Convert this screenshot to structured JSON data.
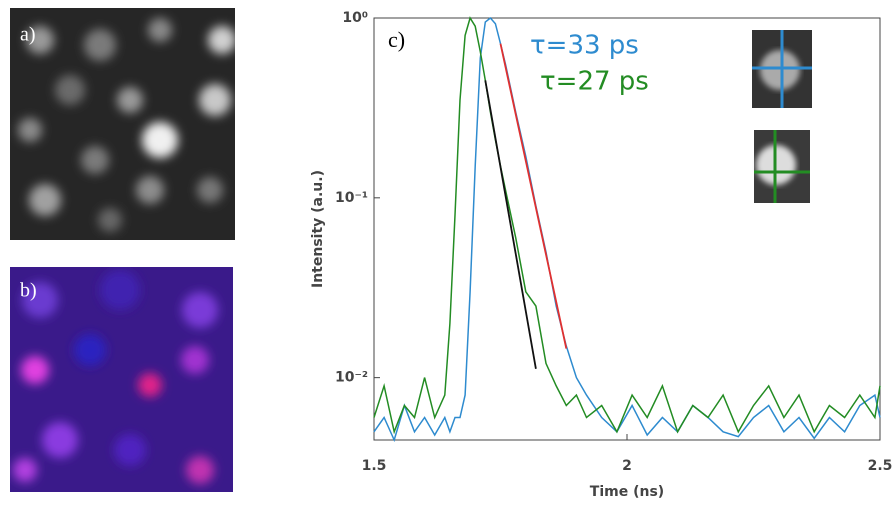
{
  "panels": [
    "a)",
    "b)",
    "c)"
  ],
  "chart_data": {
    "type": "line",
    "y_label": "Intensity (a.u.)",
    "x_label": "Time (ns)",
    "log_y": true,
    "xlim": [
      1.5,
      2.5
    ],
    "ylim": [
      0.0045,
      1.0
    ],
    "xticks": [
      1.5,
      2,
      2.5
    ],
    "yticks": [
      {
        "value": 0.01,
        "label": "10⁻²"
      },
      {
        "value": 0.1,
        "label": "10⁻¹"
      },
      {
        "value": 1,
        "label": "10⁰"
      }
    ],
    "annotations": [
      {
        "text": "τ=33 ps",
        "color": "#2e8bcf"
      },
      {
        "text": "τ=27 ps",
        "color": "#238c23"
      }
    ],
    "series": [
      {
        "color": "#2e8bcf",
        "x": [
          1.5,
          1.52,
          1.54,
          1.56,
          1.58,
          1.6,
          1.62,
          1.64,
          1.65,
          1.66,
          1.67,
          1.68,
          1.69,
          1.7,
          1.71,
          1.72,
          1.73,
          1.74,
          1.75,
          1.76,
          1.78,
          1.8,
          1.82,
          1.84,
          1.86,
          1.88,
          1.9,
          1.92,
          1.95,
          1.98,
          2.01,
          2.04,
          2.07,
          2.1,
          2.13,
          2.16,
          2.19,
          2.22,
          2.25,
          2.28,
          2.31,
          2.34,
          2.37,
          2.4,
          2.43,
          2.46,
          2.49,
          2.5
        ],
        "values": [
          0.005,
          0.006,
          0.0045,
          0.007,
          0.005,
          0.006,
          0.0048,
          0.006,
          0.005,
          0.006,
          0.006,
          0.008,
          0.03,
          0.15,
          0.6,
          0.95,
          1.0,
          0.93,
          0.72,
          0.55,
          0.3,
          0.17,
          0.09,
          0.05,
          0.025,
          0.015,
          0.01,
          0.008,
          0.006,
          0.005,
          0.007,
          0.0048,
          0.006,
          0.005,
          0.007,
          0.006,
          0.005,
          0.0047,
          0.006,
          0.007,
          0.005,
          0.006,
          0.0046,
          0.006,
          0.005,
          0.007,
          0.008,
          0.006
        ]
      },
      {
        "color": "#238c23",
        "x": [
          1.5,
          1.52,
          1.54,
          1.56,
          1.58,
          1.6,
          1.62,
          1.64,
          1.65,
          1.66,
          1.67,
          1.68,
          1.69,
          1.7,
          1.71,
          1.72,
          1.73,
          1.74,
          1.75,
          1.76,
          1.78,
          1.8,
          1.82,
          1.84,
          1.86,
          1.88,
          1.9,
          1.92,
          1.95,
          1.98,
          2.01,
          2.04,
          2.07,
          2.1,
          2.13,
          2.16,
          2.19,
          2.22,
          2.25,
          2.28,
          2.31,
          2.34,
          2.37,
          2.4,
          2.43,
          2.46,
          2.49,
          2.5
        ],
        "values": [
          0.006,
          0.009,
          0.005,
          0.007,
          0.006,
          0.01,
          0.006,
          0.008,
          0.02,
          0.08,
          0.35,
          0.8,
          1.0,
          0.9,
          0.65,
          0.45,
          0.3,
          0.21,
          0.15,
          0.11,
          0.06,
          0.03,
          0.025,
          0.012,
          0.009,
          0.007,
          0.008,
          0.006,
          0.007,
          0.005,
          0.008,
          0.006,
          0.009,
          0.005,
          0.007,
          0.006,
          0.008,
          0.005,
          0.007,
          0.009,
          0.006,
          0.008,
          0.005,
          0.007,
          0.006,
          0.008,
          0.006,
          0.009
        ]
      },
      {
        "color": "#e03030",
        "x": [
          1.75,
          1.88
        ],
        "values": [
          0.72,
          0.0145
        ]
      },
      {
        "color": "#111111",
        "x": [
          1.72,
          1.82
        ],
        "values": [
          0.45,
          0.0112
        ]
      }
    ]
  }
}
